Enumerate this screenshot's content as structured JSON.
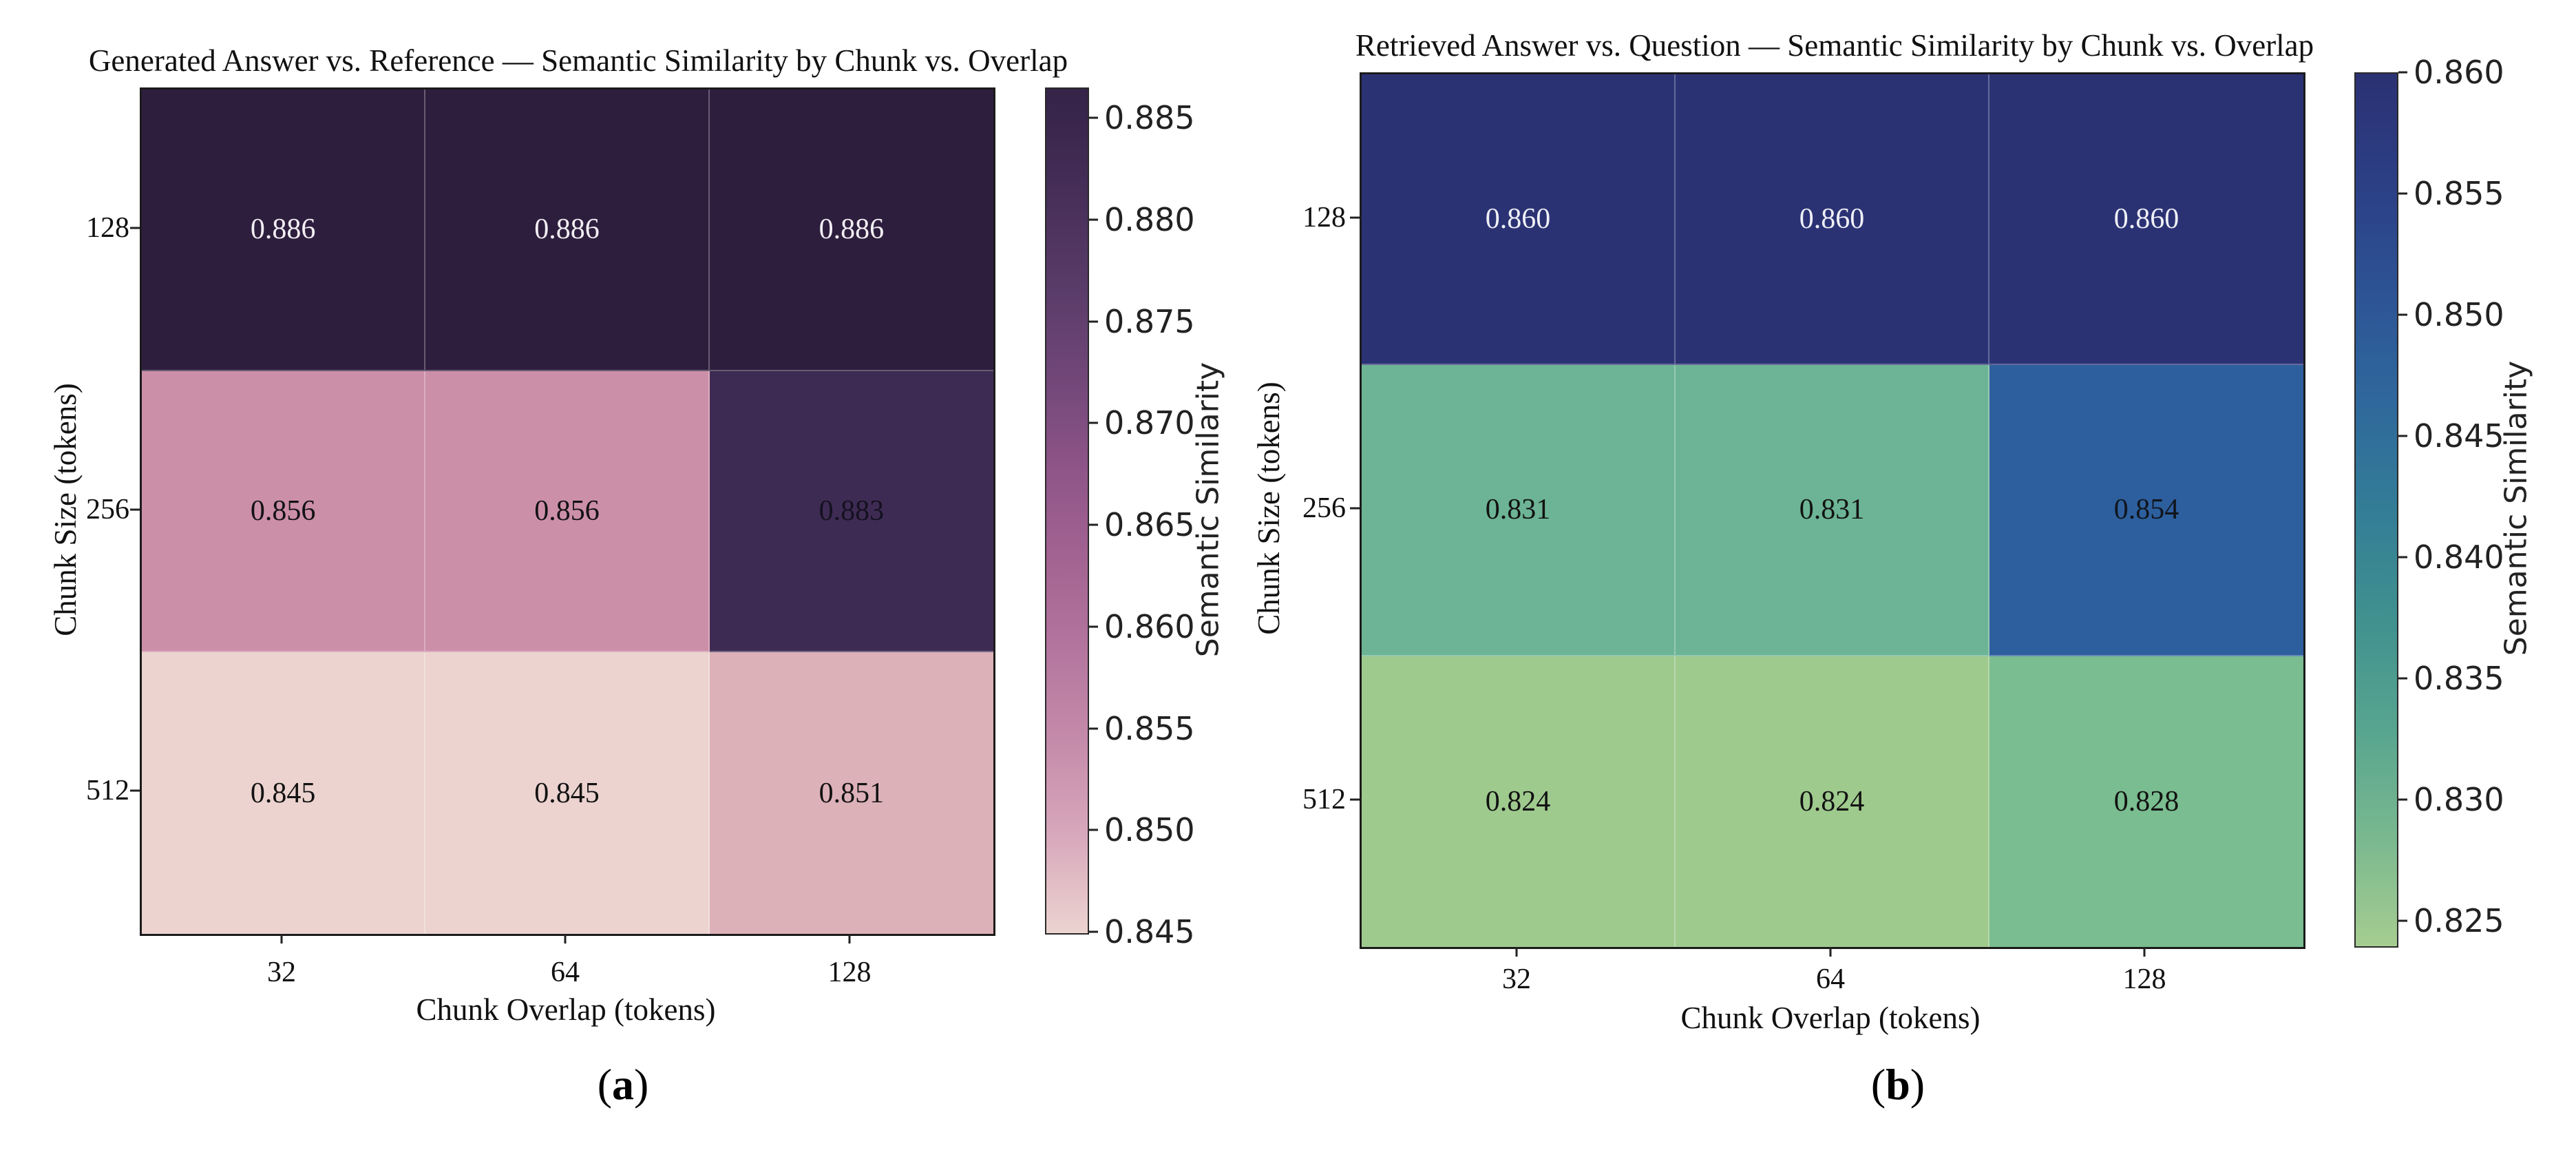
{
  "page": {
    "background": "#ffffff"
  },
  "chart_data": [
    {
      "type": "heatmap",
      "title": "Generated Answer vs. Reference — Semantic Similarity by Chunk vs. Overlap",
      "xlabel": "Chunk Overlap (tokens)",
      "ylabel": "Chunk Size (tokens)",
      "x_categories": [
        "32",
        "64",
        "128"
      ],
      "y_categories": [
        "128",
        "256",
        "512"
      ],
      "values": [
        [
          0.886,
          0.886,
          0.886
        ],
        [
          0.856,
          0.856,
          0.883
        ],
        [
          0.845,
          0.845,
          0.851
        ]
      ],
      "grid": false,
      "legend_position": "right-colorbar",
      "cells": [
        [
          {
            "label": "0.886",
            "bg": "#2e1e3e",
            "fg": "#f2eff3"
          },
          {
            "label": "0.886",
            "bg": "#2e1e3e",
            "fg": "#f2eff3"
          },
          {
            "label": "0.886",
            "bg": "#2e1e3e",
            "fg": "#f2eff3"
          }
        ],
        [
          {
            "label": "0.856",
            "bg": "#cc8fa8",
            "fg": "#121212"
          },
          {
            "label": "0.856",
            "bg": "#cc8fa8",
            "fg": "#121212"
          },
          {
            "label": "0.883",
            "bg": "#3e2b53",
            "fg": "#141120"
          }
        ],
        [
          {
            "label": "0.845",
            "bg": "#ecd3cf",
            "fg": "#121212"
          },
          {
            "label": "0.845",
            "bg": "#ecd3cf",
            "fg": "#121212"
          },
          {
            "label": "0.851",
            "bg": "#ddb1b8",
            "fg": "#121212"
          }
        ]
      ],
      "colorbar": {
        "label": "Semantic Similarity",
        "vmin": 0.845,
        "vmax": 0.8865,
        "ticks": [
          {
            "value": 0.885,
            "label": "0.885"
          },
          {
            "value": 0.88,
            "label": "0.880"
          },
          {
            "value": 0.875,
            "label": "0.875"
          },
          {
            "value": 0.87,
            "label": "0.870"
          },
          {
            "value": 0.865,
            "label": "0.865"
          },
          {
            "value": 0.86,
            "label": "0.860"
          },
          {
            "value": 0.855,
            "label": "0.855"
          },
          {
            "value": 0.85,
            "label": "0.850"
          },
          {
            "value": 0.845,
            "label": "0.845"
          }
        ],
        "gradient": [
          "#352348",
          "#442d56",
          "#573a66",
          "#6f4677",
          "#8d5487",
          "#a36392",
          "#b4769e",
          "#c68cab",
          "#d8a9bc",
          "#ecd4d0"
        ]
      },
      "caption": {
        "open": "(",
        "letter": "a",
        "close": ")"
      }
    },
    {
      "type": "heatmap",
      "title": "Retrieved Answer vs. Question — Semantic Similarity by Chunk vs. Overlap",
      "xlabel": "Chunk Overlap (tokens)",
      "ylabel": "Chunk Size (tokens)",
      "x_categories": [
        "32",
        "64",
        "128"
      ],
      "y_categories": [
        "128",
        "256",
        "512"
      ],
      "values": [
        [
          0.86,
          0.86,
          0.86
        ],
        [
          0.831,
          0.831,
          0.854
        ],
        [
          0.824,
          0.824,
          0.828
        ]
      ],
      "grid": false,
      "legend_position": "right-colorbar",
      "cells": [
        [
          {
            "label": "0.860",
            "bg": "#2b3274",
            "fg": "#eef0f5"
          },
          {
            "label": "0.860",
            "bg": "#2b3274",
            "fg": "#eef0f5"
          },
          {
            "label": "0.860",
            "bg": "#2b3274",
            "fg": "#eef0f5"
          }
        ],
        [
          {
            "label": "0.831",
            "bg": "#6cb495",
            "fg": "#121212"
          },
          {
            "label": "0.831",
            "bg": "#6cb495",
            "fg": "#121212"
          },
          {
            "label": "0.854",
            "bg": "#2d5f9e",
            "fg": "#10151c"
          }
        ],
        [
          {
            "label": "0.824",
            "bg": "#9fca8e",
            "fg": "#121212"
          },
          {
            "label": "0.824",
            "bg": "#9fca8e",
            "fg": "#121212"
          },
          {
            "label": "0.828",
            "bg": "#7abd90",
            "fg": "#121212"
          }
        ]
      ],
      "colorbar": {
        "label": "Semantic Similarity",
        "vmin": 0.824,
        "vmax": 0.86,
        "ticks": [
          {
            "value": 0.86,
            "label": "0.860"
          },
          {
            "value": 0.855,
            "label": "0.855"
          },
          {
            "value": 0.85,
            "label": "0.850"
          },
          {
            "value": 0.845,
            "label": "0.845"
          },
          {
            "value": 0.84,
            "label": "0.840"
          },
          {
            "value": 0.835,
            "label": "0.835"
          },
          {
            "value": 0.83,
            "label": "0.830"
          },
          {
            "value": 0.825,
            "label": "0.825"
          }
        ],
        "gradient": [
          "#2b3173",
          "#2c3f85",
          "#2d5395",
          "#2f689c",
          "#337d96",
          "#40918f",
          "#57a58f",
          "#79b88f",
          "#a6cd90"
        ]
      },
      "caption": {
        "open": "(",
        "letter": "b",
        "close": ")"
      }
    }
  ]
}
